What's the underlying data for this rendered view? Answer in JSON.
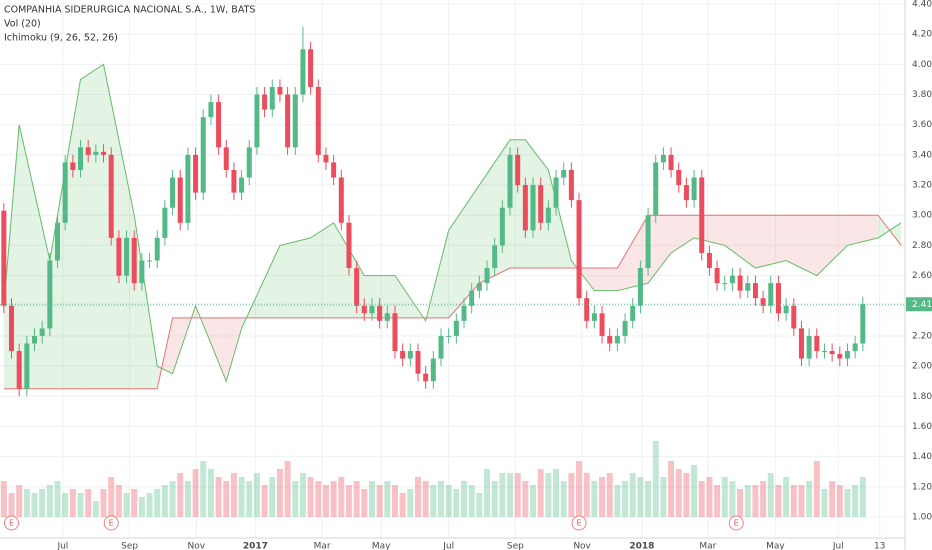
{
  "chart_data": {
    "type": "candlestick",
    "title": "COMPANHIA SIDERURGICA NACIONAL S.A., 1W, BATS",
    "indicators": [
      "Vol (20)",
      "Ichimoku (9, 26, 52, 26)"
    ],
    "up_color": "#53b987",
    "down_color": "#eb4d5c",
    "open": [
      3.03,
      2.4,
      2.1,
      1.85,
      2.15,
      2.2,
      2.25,
      2.7,
      2.95,
      3.35,
      3.3,
      3.45,
      3.4,
      3.42,
      3.4,
      2.85,
      2.6,
      2.85,
      2.55,
      2.7,
      2.7,
      2.85,
      3.05,
      3.25,
      2.95,
      3.4,
      3.15,
      3.65,
      3.75,
      3.45,
      3.3,
      3.15,
      3.25,
      3.45,
      3.8,
      3.7,
      3.85,
      3.8,
      3.45,
      3.8,
      4.1,
      3.85,
      3.4,
      3.35,
      3.25,
      2.95,
      2.65,
      2.4,
      2.35,
      2.4,
      2.3,
      2.35,
      2.1,
      2.05,
      2.1,
      1.95,
      1.9,
      2.05,
      2.2,
      2.2,
      2.3,
      2.4,
      2.5,
      2.55,
      2.65,
      2.8,
      3.05,
      3.4,
      3.2,
      2.9,
      3.2,
      2.95,
      3.05,
      3.25,
      3.3,
      3.1,
      2.45,
      2.3,
      2.35,
      2.2,
      2.15,
      2.2,
      2.3,
      2.4,
      2.65,
      3.0,
      3.35,
      3.4,
      3.3,
      3.2,
      3.1,
      3.25,
      2.75,
      2.65,
      2.55,
      2.55,
      2.6,
      2.5,
      2.55,
      2.45,
      2.4,
      2.55,
      2.35,
      2.4,
      2.25,
      2.05,
      2.2,
      2.1,
      2.1,
      2.08,
      2.05,
      2.1,
      2.15
    ],
    "high": [
      3.08,
      2.45,
      2.15,
      2.2,
      2.25,
      2.3,
      2.75,
      3.0,
      3.4,
      3.4,
      3.5,
      3.5,
      3.47,
      3.47,
      3.45,
      2.9,
      2.9,
      2.9,
      2.75,
      2.75,
      2.9,
      3.1,
      3.3,
      3.3,
      3.45,
      3.45,
      3.7,
      3.8,
      3.8,
      3.5,
      3.35,
      3.3,
      3.5,
      3.85,
      3.85,
      3.9,
      3.9,
      3.85,
      3.85,
      4.25,
      4.15,
      3.9,
      3.45,
      3.4,
      3.3,
      3.0,
      2.7,
      2.45,
      2.45,
      2.45,
      2.4,
      2.4,
      2.15,
      2.15,
      2.15,
      2.0,
      2.1,
      2.25,
      2.25,
      2.35,
      2.45,
      2.55,
      2.6,
      2.7,
      2.85,
      3.1,
      3.45,
      3.45,
      3.25,
      3.25,
      3.25,
      3.1,
      3.3,
      3.35,
      3.35,
      3.15,
      2.5,
      2.4,
      2.4,
      2.25,
      2.25,
      2.35,
      2.45,
      2.7,
      3.05,
      3.4,
      3.45,
      3.45,
      3.35,
      3.25,
      3.3,
      3.3,
      2.8,
      2.7,
      2.6,
      2.65,
      2.65,
      2.6,
      2.6,
      2.5,
      2.6,
      2.6,
      2.45,
      2.45,
      2.3,
      2.25,
      2.25,
      2.15,
      2.15,
      2.13,
      2.15,
      2.2,
      2.46
    ],
    "low": [
      2.35,
      2.05,
      1.8,
      1.8,
      2.1,
      2.15,
      2.2,
      2.65,
      2.9,
      3.25,
      3.25,
      3.35,
      3.35,
      3.35,
      2.8,
      2.55,
      2.55,
      2.5,
      2.5,
      2.65,
      2.65,
      2.8,
      3.0,
      2.9,
      2.9,
      3.1,
      3.1,
      3.6,
      3.4,
      3.25,
      3.1,
      3.1,
      3.2,
      3.4,
      3.65,
      3.65,
      3.75,
      3.4,
      3.4,
      3.75,
      3.8,
      3.35,
      3.3,
      3.2,
      2.9,
      2.6,
      2.35,
      2.3,
      2.3,
      2.25,
      2.25,
      2.05,
      2.0,
      2.0,
      1.9,
      1.85,
      1.85,
      2.0,
      2.15,
      2.15,
      2.25,
      2.35,
      2.45,
      2.5,
      2.6,
      2.75,
      3.0,
      3.15,
      2.85,
      2.85,
      2.9,
      2.9,
      3.0,
      3.2,
      3.05,
      2.4,
      2.25,
      2.25,
      2.15,
      2.1,
      2.1,
      2.15,
      2.25,
      2.35,
      2.6,
      2.95,
      3.3,
      3.25,
      3.15,
      3.05,
      3.05,
      2.7,
      2.6,
      2.5,
      2.5,
      2.5,
      2.45,
      2.45,
      2.4,
      2.35,
      2.35,
      2.3,
      2.3,
      2.2,
      2.0,
      2.0,
      2.05,
      2.05,
      2.03,
      2.0,
      2.0,
      2.05,
      2.1
    ],
    "close": [
      2.4,
      2.1,
      1.85,
      2.15,
      2.2,
      2.25,
      2.7,
      2.95,
      3.35,
      3.3,
      3.45,
      3.4,
      3.42,
      3.4,
      2.85,
      2.6,
      2.85,
      2.55,
      2.7,
      2.7,
      2.85,
      3.05,
      3.25,
      2.95,
      3.4,
      3.15,
      3.65,
      3.75,
      3.45,
      3.3,
      3.15,
      3.25,
      3.45,
      3.8,
      3.7,
      3.85,
      3.8,
      3.45,
      3.8,
      4.1,
      3.85,
      3.4,
      3.35,
      3.25,
      2.95,
      2.65,
      2.4,
      2.35,
      2.4,
      2.3,
      2.35,
      2.1,
      2.05,
      2.1,
      1.95,
      1.9,
      2.05,
      2.2,
      2.2,
      2.3,
      2.4,
      2.5,
      2.55,
      2.65,
      2.8,
      3.05,
      3.4,
      3.2,
      2.9,
      3.2,
      2.95,
      3.05,
      3.25,
      3.3,
      3.1,
      2.45,
      2.3,
      2.35,
      2.2,
      2.15,
      2.2,
      2.3,
      2.4,
      2.65,
      3.0,
      3.35,
      3.4,
      3.3,
      3.2,
      3.1,
      3.25,
      2.75,
      2.65,
      2.55,
      2.55,
      2.6,
      2.5,
      2.55,
      2.45,
      2.4,
      2.55,
      2.35,
      2.4,
      2.25,
      2.05,
      2.2,
      2.1,
      2.1,
      2.08,
      2.05,
      2.1,
      2.15,
      2.41
    ],
    "volume": [
      45,
      30,
      40,
      35,
      30,
      35,
      40,
      45,
      30,
      35,
      30,
      35,
      20,
      35,
      50,
      40,
      30,
      35,
      25,
      30,
      35,
      40,
      45,
      55,
      45,
      60,
      70,
      60,
      50,
      45,
      55,
      50,
      45,
      55,
      40,
      50,
      60,
      70,
      45,
      55,
      50,
      45,
      40,
      45,
      50,
      40,
      45,
      35,
      45,
      40,
      45,
      40,
      30,
      35,
      50,
      45,
      40,
      45,
      40,
      35,
      45,
      40,
      30,
      60,
      45,
      55,
      55,
      55,
      45,
      40,
      60,
      55,
      60,
      45,
      55,
      70,
      55,
      45,
      50,
      55,
      40,
      45,
      55,
      50,
      45,
      95,
      50,
      70,
      60,
      55,
      65,
      45,
      50,
      40,
      50,
      45,
      35,
      40,
      40,
      45,
      55,
      40,
      50,
      40,
      40,
      45,
      70,
      35,
      45,
      40,
      35,
      40,
      50
    ],
    "vlim": [
      0,
      100
    ],
    "ichimoku": {
      "x": [
        0,
        2,
        6,
        10,
        13,
        17,
        20,
        22,
        25,
        29,
        31,
        36,
        40,
        43,
        47,
        51,
        55,
        58,
        62,
        66,
        68,
        71,
        74,
        77,
        80,
        84,
        87,
        90,
        94,
        98,
        102,
        106,
        110,
        114,
        117
      ],
      "span_a": [
        2.4,
        3.6,
        2.7,
        3.9,
        4.0,
        3.0,
        2.0,
        1.95,
        2.4,
        1.9,
        2.25,
        2.8,
        2.85,
        2.95,
        2.6,
        2.6,
        2.3,
        2.9,
        3.2,
        3.5,
        3.5,
        3.3,
        2.7,
        2.5,
        2.5,
        2.55,
        2.75,
        2.85,
        2.8,
        2.65,
        2.7,
        2.6,
        2.8,
        2.85,
        2.95
      ],
      "span_b": [
        1.85,
        1.85,
        1.85,
        1.85,
        1.85,
        1.85,
        1.85,
        2.32,
        2.32,
        2.32,
        2.32,
        2.32,
        2.32,
        2.32,
        2.32,
        2.32,
        2.32,
        2.32,
        2.55,
        2.65,
        2.65,
        2.65,
        2.65,
        2.65,
        2.65,
        3.0,
        3.0,
        3.0,
        3.0,
        3.0,
        3.0,
        3.0,
        3.0,
        3.0,
        2.8
      ],
      "span_a_color": "#66bb6a",
      "span_b_color": "#e57373"
    },
    "last_price": 2.41,
    "ylim": [
      1.0,
      4.4
    ],
    "yticks": [
      {
        "value": 1.0,
        "label": "1.00"
      },
      {
        "value": 1.2,
        "label": "1.20"
      },
      {
        "value": 1.4,
        "label": "1.40"
      },
      {
        "value": 1.6,
        "label": "1.60"
      },
      {
        "value": 1.8,
        "label": "1.80"
      },
      {
        "value": 2.0,
        "label": "2.00"
      },
      {
        "value": 2.2,
        "label": "2.20"
      },
      {
        "value": 2.4,
        "label": "2.40"
      },
      {
        "value": 2.6,
        "label": "2.60"
      },
      {
        "value": 2.8,
        "label": "2.80"
      },
      {
        "value": 3.0,
        "label": "3.00"
      },
      {
        "value": 3.2,
        "label": "3.20"
      },
      {
        "value": 3.4,
        "label": "3.40"
      },
      {
        "value": 3.6,
        "label": "3.60"
      },
      {
        "value": 3.8,
        "label": "3.80"
      },
      {
        "value": 4.0,
        "label": "4.00"
      },
      {
        "value": 4.2,
        "label": "4.20"
      },
      {
        "value": 4.4,
        "label": "4.40"
      }
    ],
    "xlim": [
      -0.5,
      117.5
    ],
    "xticks": [
      {
        "value": 7.7,
        "label": "Jul"
      },
      {
        "value": 16.4,
        "label": "Sep"
      },
      {
        "value": 25.1,
        "label": "Nov"
      },
      {
        "value": 32.8,
        "label": "2017"
      },
      {
        "value": 41.5,
        "label": "Mar"
      },
      {
        "value": 49.2,
        "label": "May"
      },
      {
        "value": 58,
        "label": "Jul"
      },
      {
        "value": 66.7,
        "label": "Sep"
      },
      {
        "value": 75.4,
        "label": "Nov"
      },
      {
        "value": 83.2,
        "label": "2018"
      },
      {
        "value": 91.8,
        "label": "Mar"
      },
      {
        "value": 100.6,
        "label": "May"
      },
      {
        "value": 108.8,
        "label": "Jul"
      },
      {
        "value": 114.2,
        "label": "13"
      }
    ],
    "earnings": [
      {
        "x": 1,
        "label": "E"
      },
      {
        "x": 14,
        "label": "E"
      },
      {
        "x": 75,
        "label": "E"
      },
      {
        "x": 95.5,
        "label": "E"
      }
    ],
    "grid": true
  }
}
